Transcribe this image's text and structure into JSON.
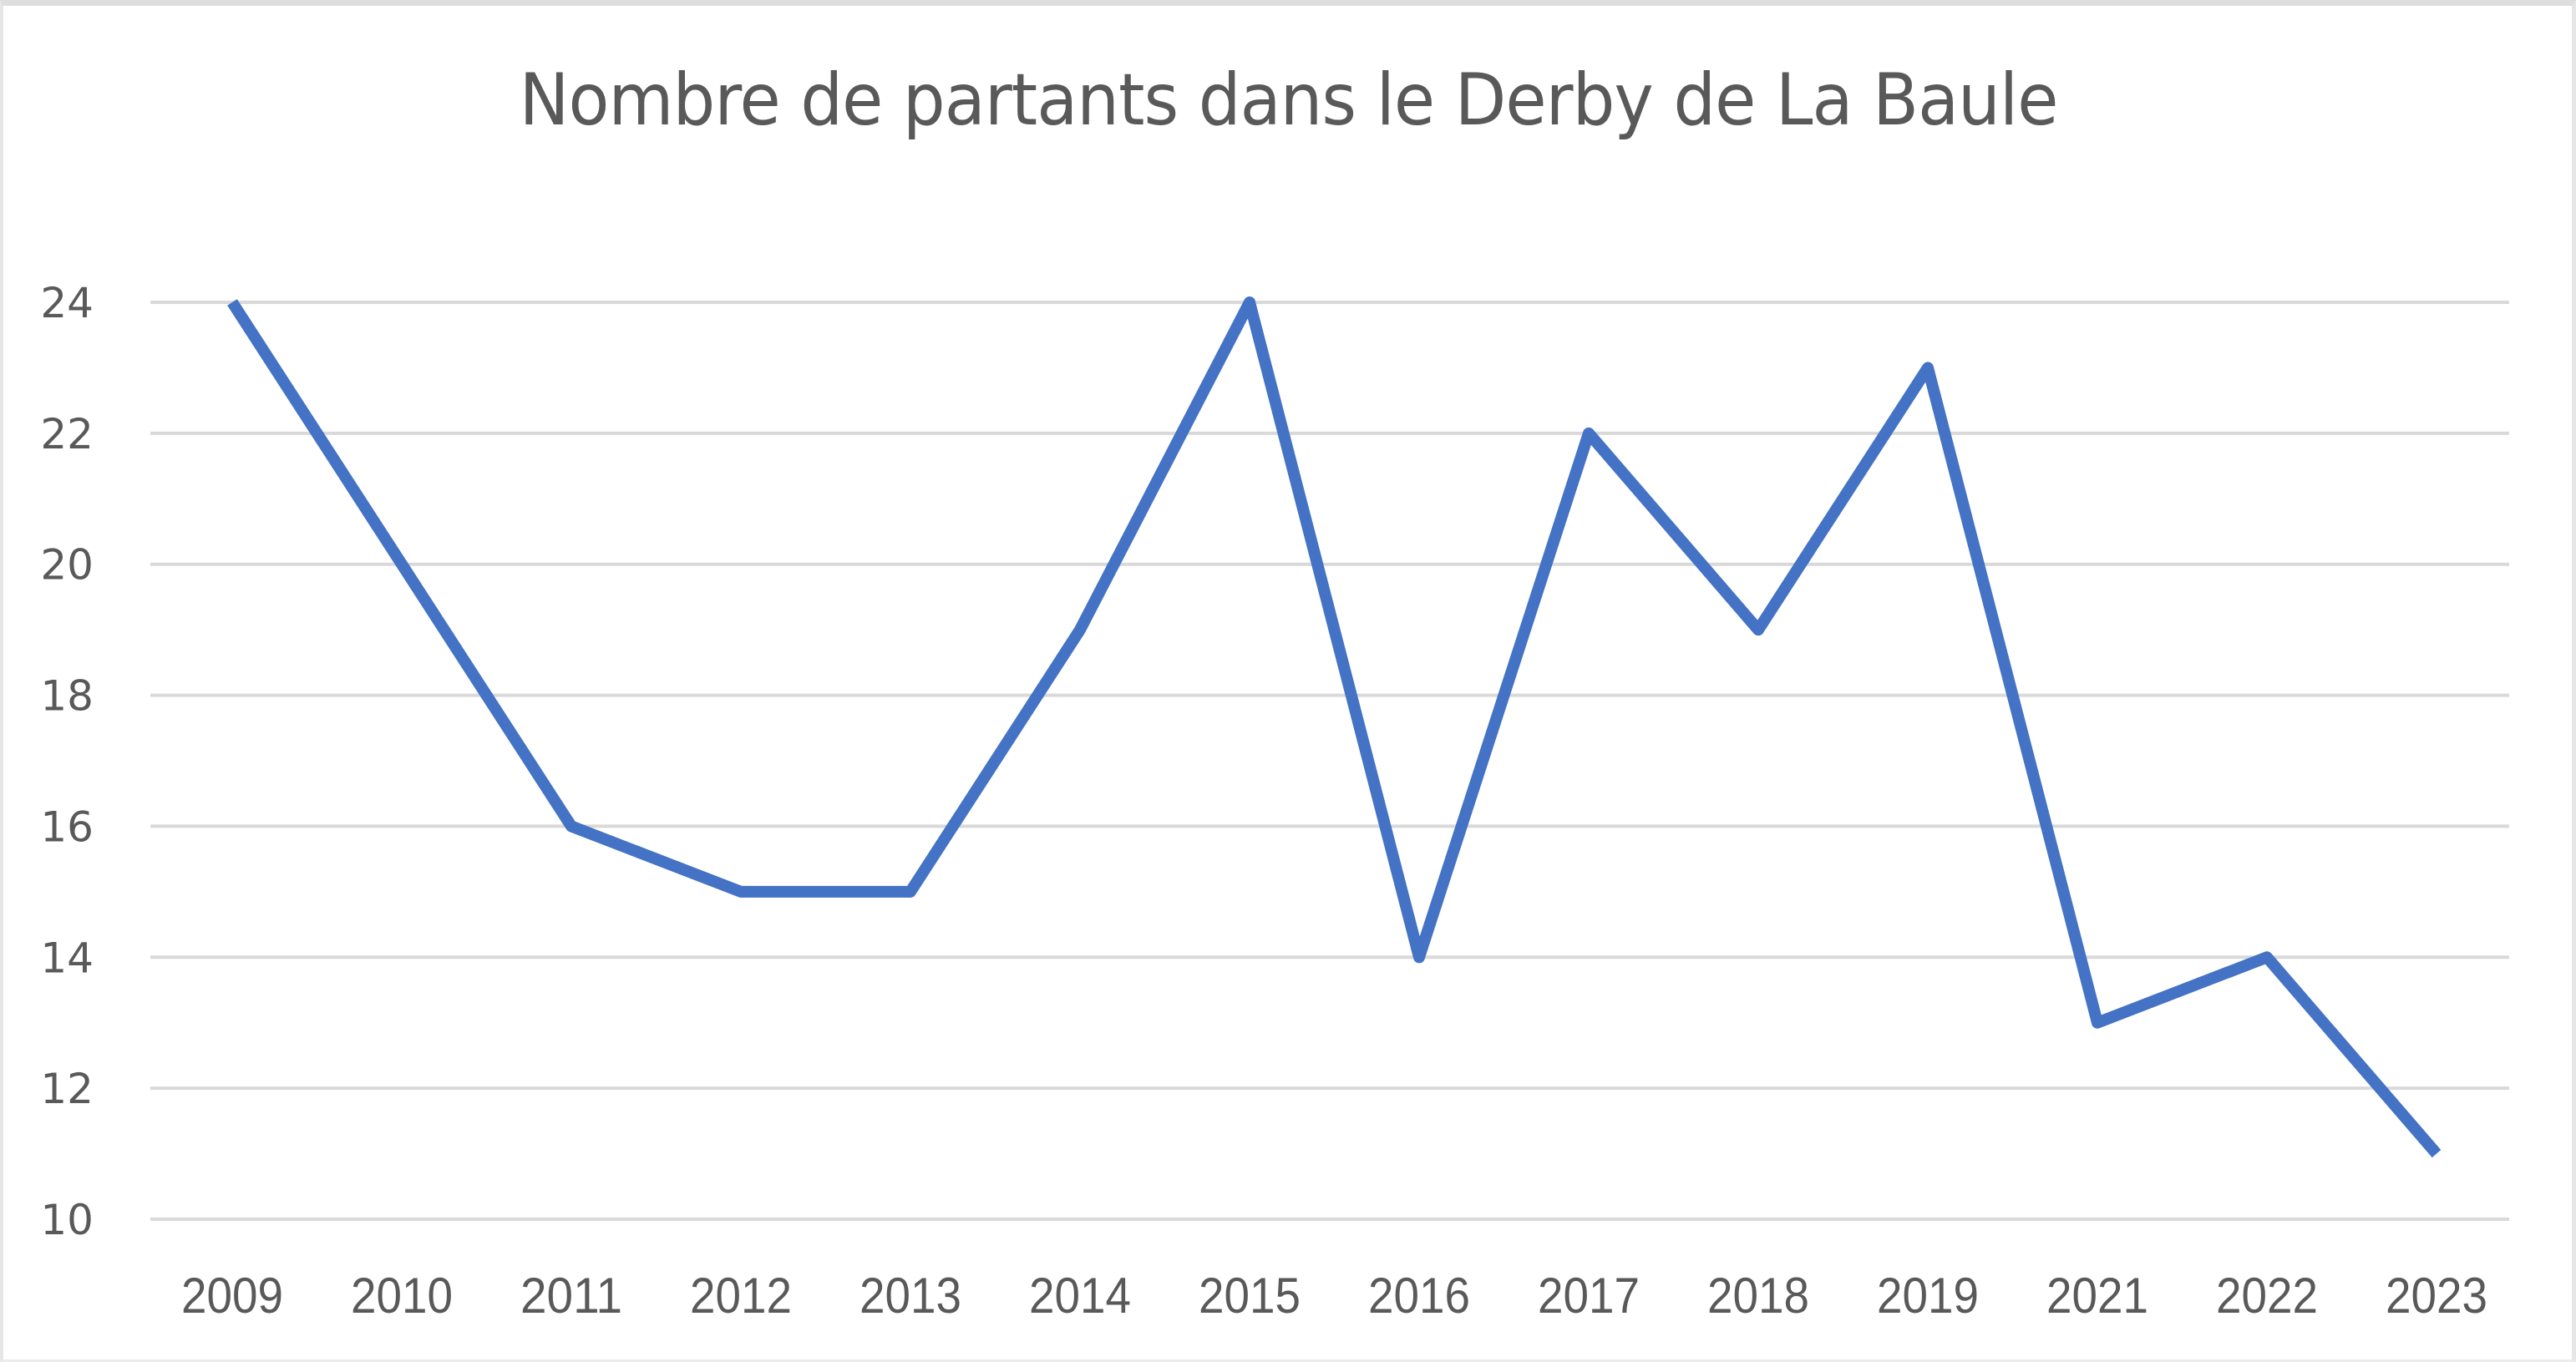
{
  "chart_data": {
    "type": "line",
    "title": "Nombre de partants dans le Derby de La Baule",
    "xlabel": "",
    "ylabel": "",
    "categories": [
      "2009",
      "2010",
      "2011",
      "2012",
      "2013",
      "2014",
      "2015",
      "2016",
      "2017",
      "2018",
      "2019",
      "2021",
      "2022",
      "2023"
    ],
    "series": [
      {
        "name": "Nombre de partants",
        "color": "#4472C4",
        "values": [
          24,
          20,
          16,
          15,
          15,
          19,
          24,
          14,
          22,
          19,
          23,
          13,
          14,
          11
        ]
      }
    ],
    "ylim": [
      10,
      24
    ],
    "yticks": [
      "24",
      "22",
      "20",
      "18",
      "16",
      "14",
      "12",
      "10"
    ],
    "grid": true,
    "legend": "none"
  },
  "colors": {
    "line": "#4472C4",
    "grid": "#d9d9d9",
    "text": "#595959"
  }
}
